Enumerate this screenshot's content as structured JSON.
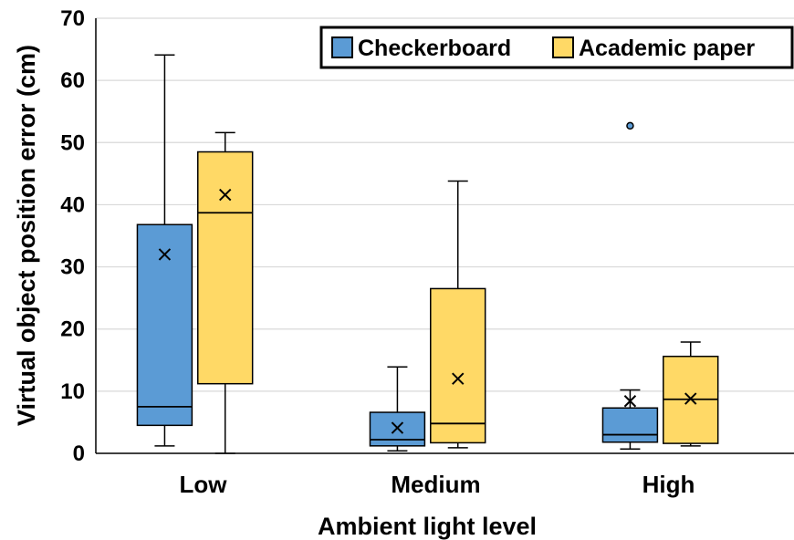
{
  "chart_data": {
    "type": "boxplot",
    "title": "",
    "xlabel": "Ambient light level",
    "ylabel": "Virtual object position error (cm)",
    "ylim": [
      0,
      70
    ],
    "yticks": [
      "0",
      "10",
      "20",
      "30",
      "40",
      "50",
      "60",
      "70"
    ],
    "categories": [
      "Low",
      "Medium",
      "High"
    ],
    "grid": true,
    "legend_position": "top-right",
    "series": [
      {
        "name": "Checkerboard",
        "color": "#5b9bd5",
        "boxes": [
          {
            "min": 1.2,
            "q1": 4.5,
            "median": 7.5,
            "q3": 36.8,
            "max": 64.1,
            "mean": 32.0,
            "outliers": []
          },
          {
            "min": 0.4,
            "q1": 1.2,
            "median": 2.2,
            "q3": 6.6,
            "max": 13.9,
            "mean": 4.1,
            "outliers": []
          },
          {
            "min": 0.7,
            "q1": 1.8,
            "median": 3.0,
            "q3": 7.3,
            "max": 10.2,
            "mean": 8.4,
            "outliers": [
              52.7
            ]
          }
        ]
      },
      {
        "name": "Academic paper",
        "color": "#ffd966",
        "boxes": [
          {
            "min": 0.0,
            "q1": 11.2,
            "median": 38.7,
            "q3": 48.5,
            "max": 51.6,
            "mean": 41.6,
            "outliers": []
          },
          {
            "min": 0.9,
            "q1": 1.7,
            "median": 4.8,
            "q3": 26.5,
            "max": 43.8,
            "mean": 12.0,
            "outliers": []
          },
          {
            "min": 1.2,
            "q1": 1.6,
            "median": 8.7,
            "q3": 15.6,
            "max": 17.9,
            "mean": 8.8,
            "outliers": []
          }
        ]
      }
    ]
  }
}
